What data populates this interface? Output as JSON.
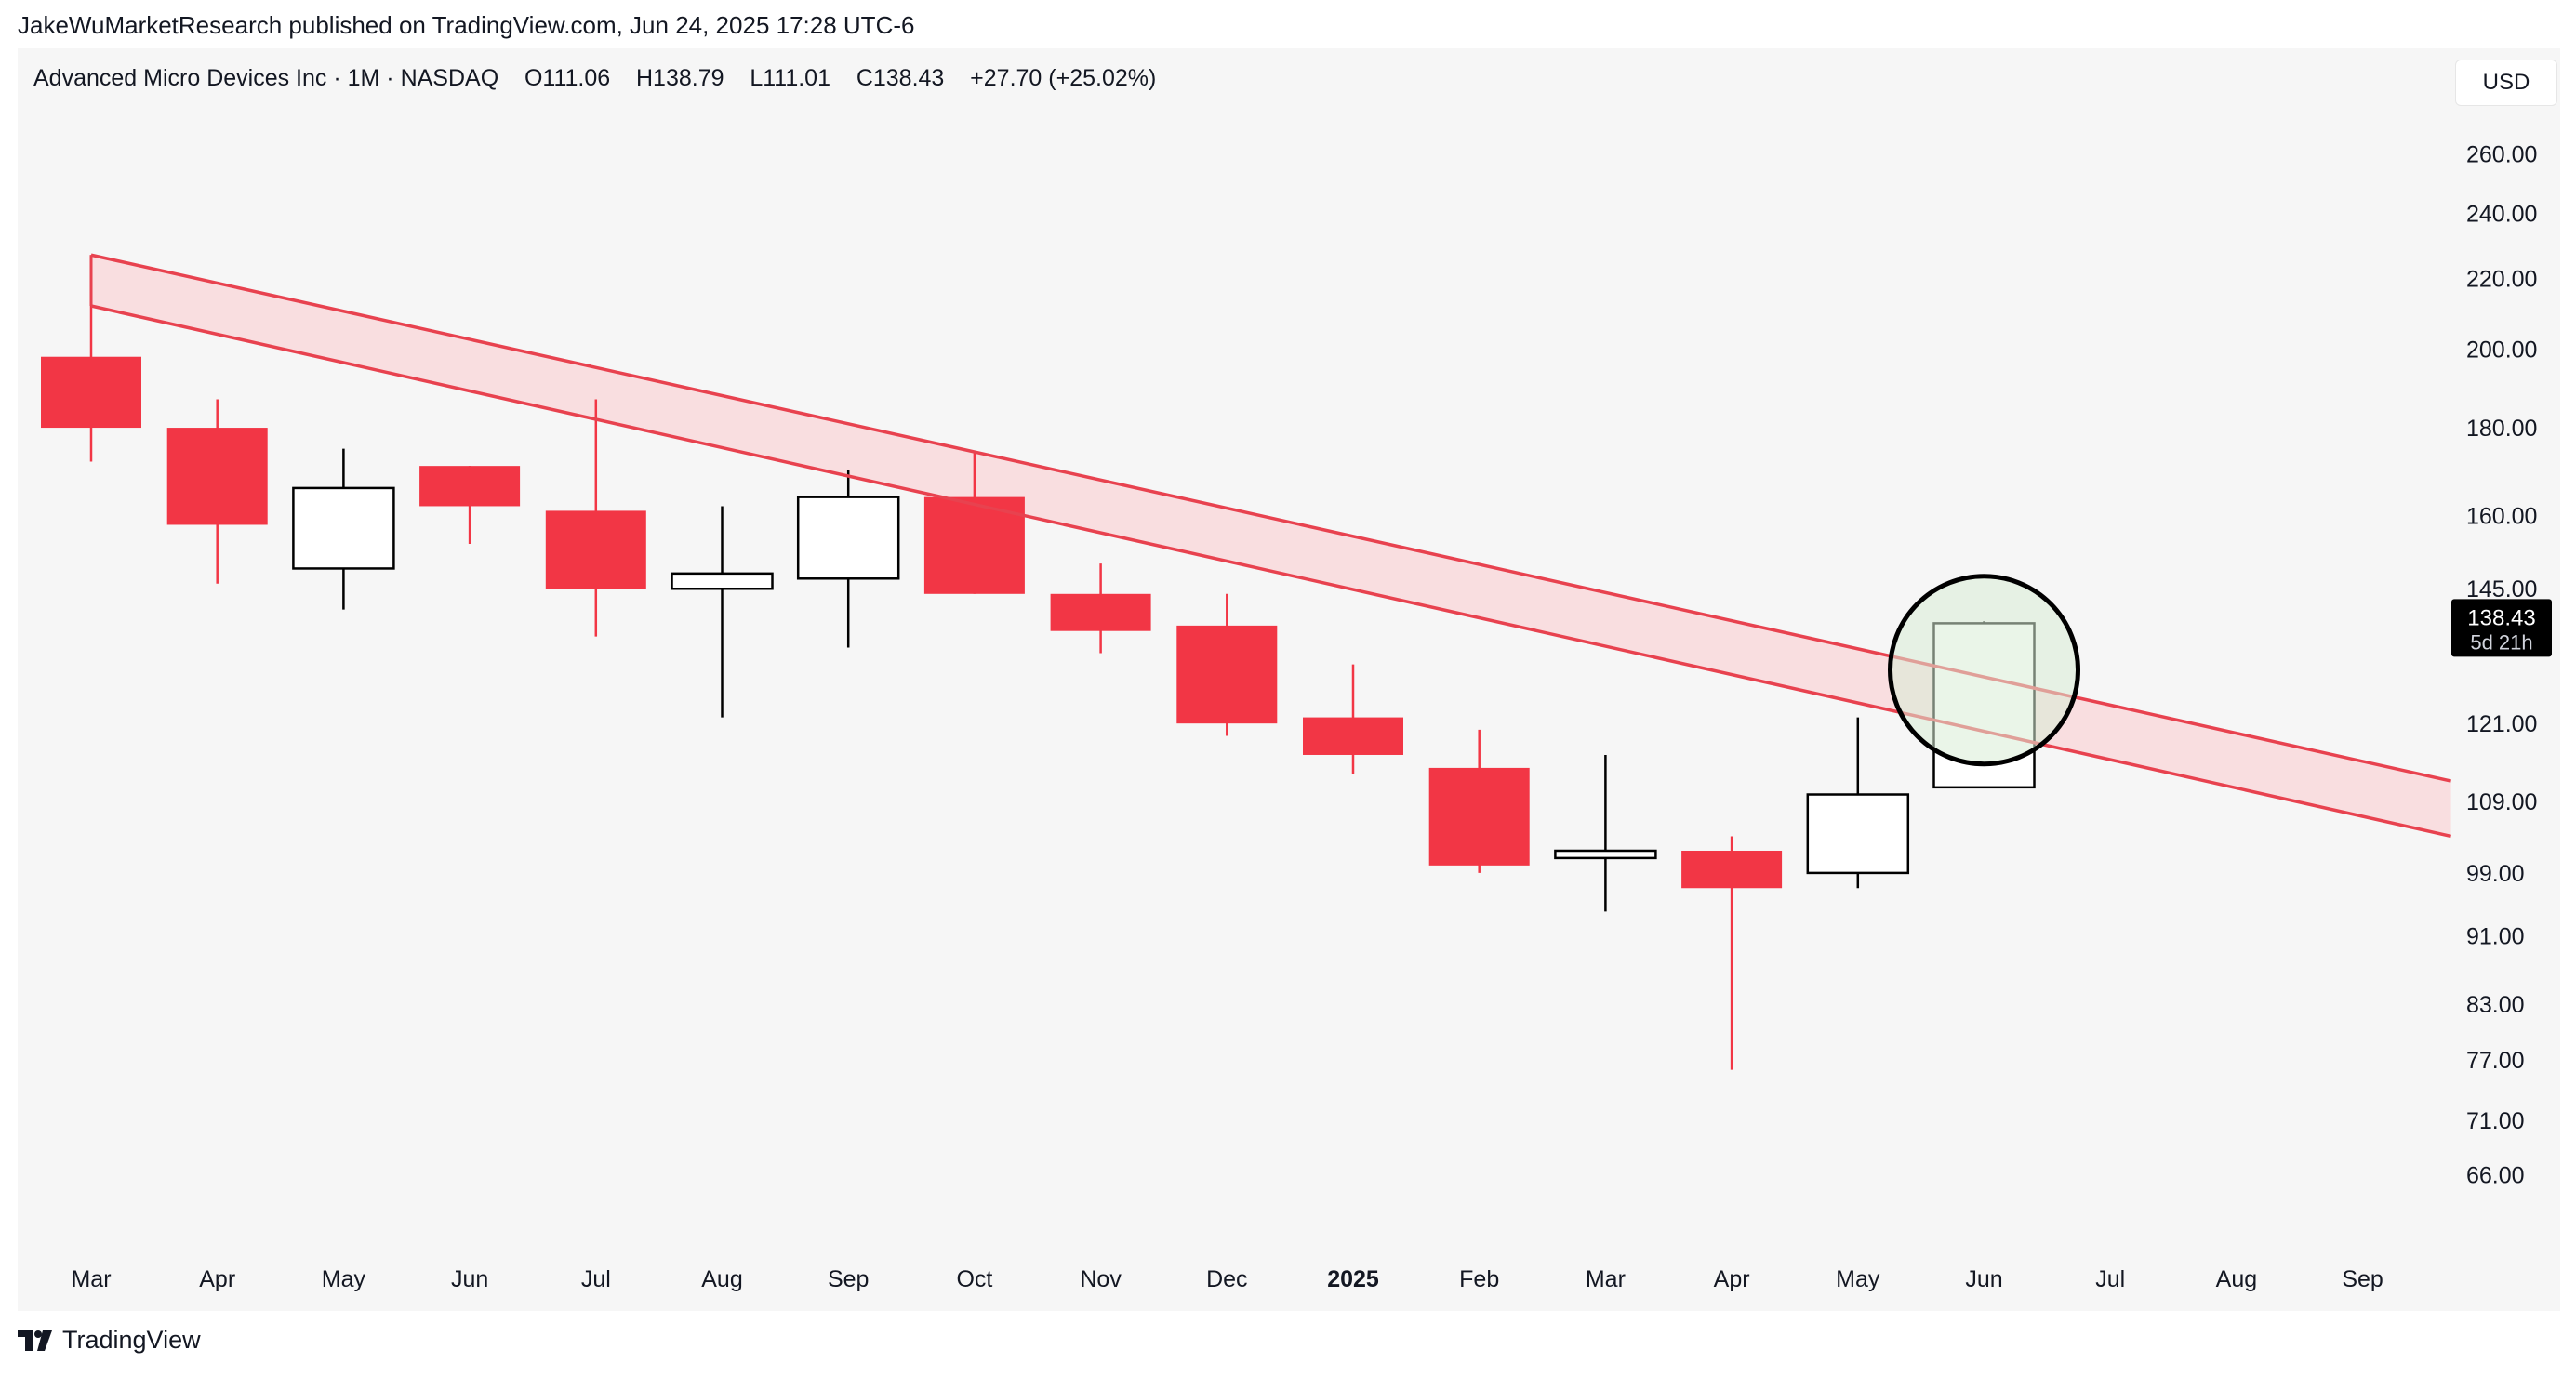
{
  "publish_line": "JakeWuMarketResearch published on TradingView.com, Jun 24, 2025 17:28 UTC-6",
  "legend": {
    "symbol": "Advanced Micro Devices Inc · 1M · NASDAQ",
    "open": "O111.06",
    "high": "H138.79",
    "low": "L111.01",
    "close": "C138.43",
    "change": "+27.70 (+25.02%)"
  },
  "currency": "USD",
  "price_badge": {
    "price": "138.43",
    "countdown": "5d 21h"
  },
  "brand": "TradingView",
  "colors": {
    "up_body": "#ffffff",
    "up_outline": "#000000",
    "down": "#f23645",
    "channel_fill": "#f9d9dc",
    "channel_line": "#e8424f",
    "highlight_fill": "#d8ecd5",
    "highlight_ring": "#000000",
    "badge_bg": "#000000",
    "background": "#f6f6f6"
  },
  "chart_data": {
    "type": "candlestick",
    "y_scale": "log",
    "ylim": [
      60,
      285
    ],
    "y_ticks": [
      "260.00",
      "240.00",
      "220.00",
      "200.00",
      "180.00",
      "160.00",
      "145.00",
      "121.00",
      "109.00",
      "99.00",
      "91.00",
      "83.00",
      "77.00",
      "71.00",
      "66.00"
    ],
    "x_labels": [
      "Mar",
      "Apr",
      "May",
      "Jun",
      "Jul",
      "Aug",
      "Sep",
      "Oct",
      "Nov",
      "Dec",
      "2025",
      "Feb",
      "Mar",
      "Apr",
      "May",
      "Jun",
      "Jul",
      "Aug",
      "Sep"
    ],
    "bold_x_labels": [
      "2025"
    ],
    "candles": [
      {
        "label": "Mar",
        "open": 198,
        "high": 227,
        "low": 172,
        "close": 180
      },
      {
        "label": "Apr",
        "open": 180,
        "high": 187,
        "low": 146,
        "close": 158
      },
      {
        "label": "May",
        "open": 149,
        "high": 175,
        "low": 141,
        "close": 166
      },
      {
        "label": "Jun",
        "open": 171,
        "high": 171,
        "low": 154,
        "close": 162
      },
      {
        "label": "Jul",
        "open": 161,
        "high": 187,
        "low": 136,
        "close": 145
      },
      {
        "label": "Aug",
        "open": 145,
        "high": 162,
        "low": 122,
        "close": 148
      },
      {
        "label": "Sep",
        "open": 147,
        "high": 170,
        "low": 134,
        "close": 164
      },
      {
        "label": "Oct",
        "open": 164,
        "high": 174,
        "low": 144,
        "close": 144
      },
      {
        "label": "Nov",
        "open": 144,
        "high": 150,
        "low": 133,
        "close": 137
      },
      {
        "label": "Dec",
        "open": 138,
        "high": 144,
        "low": 119,
        "close": 121
      },
      {
        "label": "Jan 2025",
        "open": 122,
        "high": 131,
        "low": 113,
        "close": 116
      },
      {
        "label": "Feb",
        "open": 114,
        "high": 120,
        "low": 99,
        "close": 100
      },
      {
        "label": "Mar",
        "open": 101,
        "high": 116,
        "low": 94,
        "close": 102
      },
      {
        "label": "Apr",
        "open": 102,
        "high": 104,
        "low": 76,
        "close": 97
      },
      {
        "label": "May",
        "open": 99,
        "high": 122,
        "low": 97,
        "close": 110
      },
      {
        "label": "Jun",
        "open": 111.06,
        "high": 138.79,
        "low": 111.01,
        "close": 138.43
      }
    ],
    "resistance_channel": {
      "upper": [
        {
          "x_index": 0,
          "y": 227
        },
        {
          "x_index": 18.7,
          "y": 112
        }
      ],
      "lower": [
        {
          "x_index": 0,
          "y": 212
        },
        {
          "x_index": 18.7,
          "y": 104
        }
      ]
    },
    "highlight_circle": {
      "x_index": 15,
      "y": 130
    }
  }
}
